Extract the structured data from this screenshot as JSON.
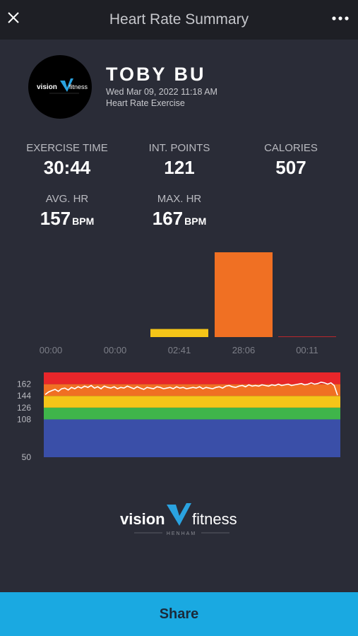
{
  "header": {
    "title": "Heart Rate Summary",
    "close_icon": "close-icon",
    "more_icon": "more-icon"
  },
  "profile": {
    "name": "TOBY BU",
    "datetime": "Wed Mar 09, 2022 11:18 AM",
    "exercise_type": "Heart Rate Exercise",
    "logo_text": "vision",
    "logo_suffix": "fitness"
  },
  "stats": {
    "exercise_time_label": "EXERCISE TIME",
    "exercise_time_value": "30:44",
    "int_points_label": "INT. POINTS",
    "int_points_value": "121",
    "calories_label": "CALORIES",
    "calories_value": "507",
    "avg_hr_label": "AVG. HR",
    "avg_hr_value": "157",
    "avg_hr_unit": "BPM",
    "max_hr_label": "MAX. HR",
    "max_hr_value": "167",
    "max_hr_unit": "BPM"
  },
  "chart_data": [
    {
      "type": "bar",
      "categories": [
        "00:00",
        "00:00",
        "02:41",
        "28:06",
        "00:11"
      ],
      "values": [
        0,
        0,
        2.68,
        28.1,
        0.18
      ],
      "colors": [
        "#3a4fa8",
        "#3fb54a",
        "#f5c518",
        "#f07023",
        "#e8262a"
      ],
      "title": "",
      "xlabel": "",
      "ylabel": ""
    },
    {
      "type": "line",
      "ylim": [
        50,
        180
      ],
      "yticks": [
        "162",
        "144",
        "126",
        "108",
        "50"
      ],
      "ytick_values": [
        162,
        144,
        126,
        108,
        50
      ],
      "zones": [
        {
          "from": 50,
          "to": 108,
          "color": "#3a4fa8"
        },
        {
          "from": 108,
          "to": 126,
          "color": "#3fb54a"
        },
        {
          "from": 126,
          "to": 144,
          "color": "#f5c518"
        },
        {
          "from": 144,
          "to": 162,
          "color": "#f07023"
        },
        {
          "from": 162,
          "to": 180,
          "color": "#e8262a"
        }
      ],
      "series": [
        {
          "values": [
            146,
            150,
            152,
            154,
            151,
            155,
            156,
            153,
            157,
            155,
            158,
            156,
            159,
            157,
            160,
            156,
            158,
            155,
            159,
            157,
            156,
            158,
            155,
            157,
            156,
            159,
            157,
            155,
            158,
            156,
            154,
            157,
            156,
            155,
            158,
            157,
            155,
            156,
            157,
            155,
            158,
            156,
            157,
            155,
            156,
            157,
            156,
            158,
            155,
            157,
            156,
            155,
            157,
            158,
            156,
            159,
            160,
            158,
            157,
            159,
            160,
            158,
            161,
            159,
            160,
            159,
            161,
            160,
            159,
            161,
            160,
            162,
            160,
            161,
            162,
            160,
            161,
            162,
            163,
            161,
            162,
            164,
            162,
            163,
            165,
            164,
            162,
            164,
            160,
            145
          ]
        }
      ]
    }
  ],
  "footer": {
    "brand": "vision",
    "brand_suffix": "fitness",
    "location": "HENHAM"
  },
  "actions": {
    "share_label": "Share"
  },
  "colors": {
    "background": "#2a2c37",
    "topbar": "#1e1f25",
    "share": "#1aa9e1"
  }
}
